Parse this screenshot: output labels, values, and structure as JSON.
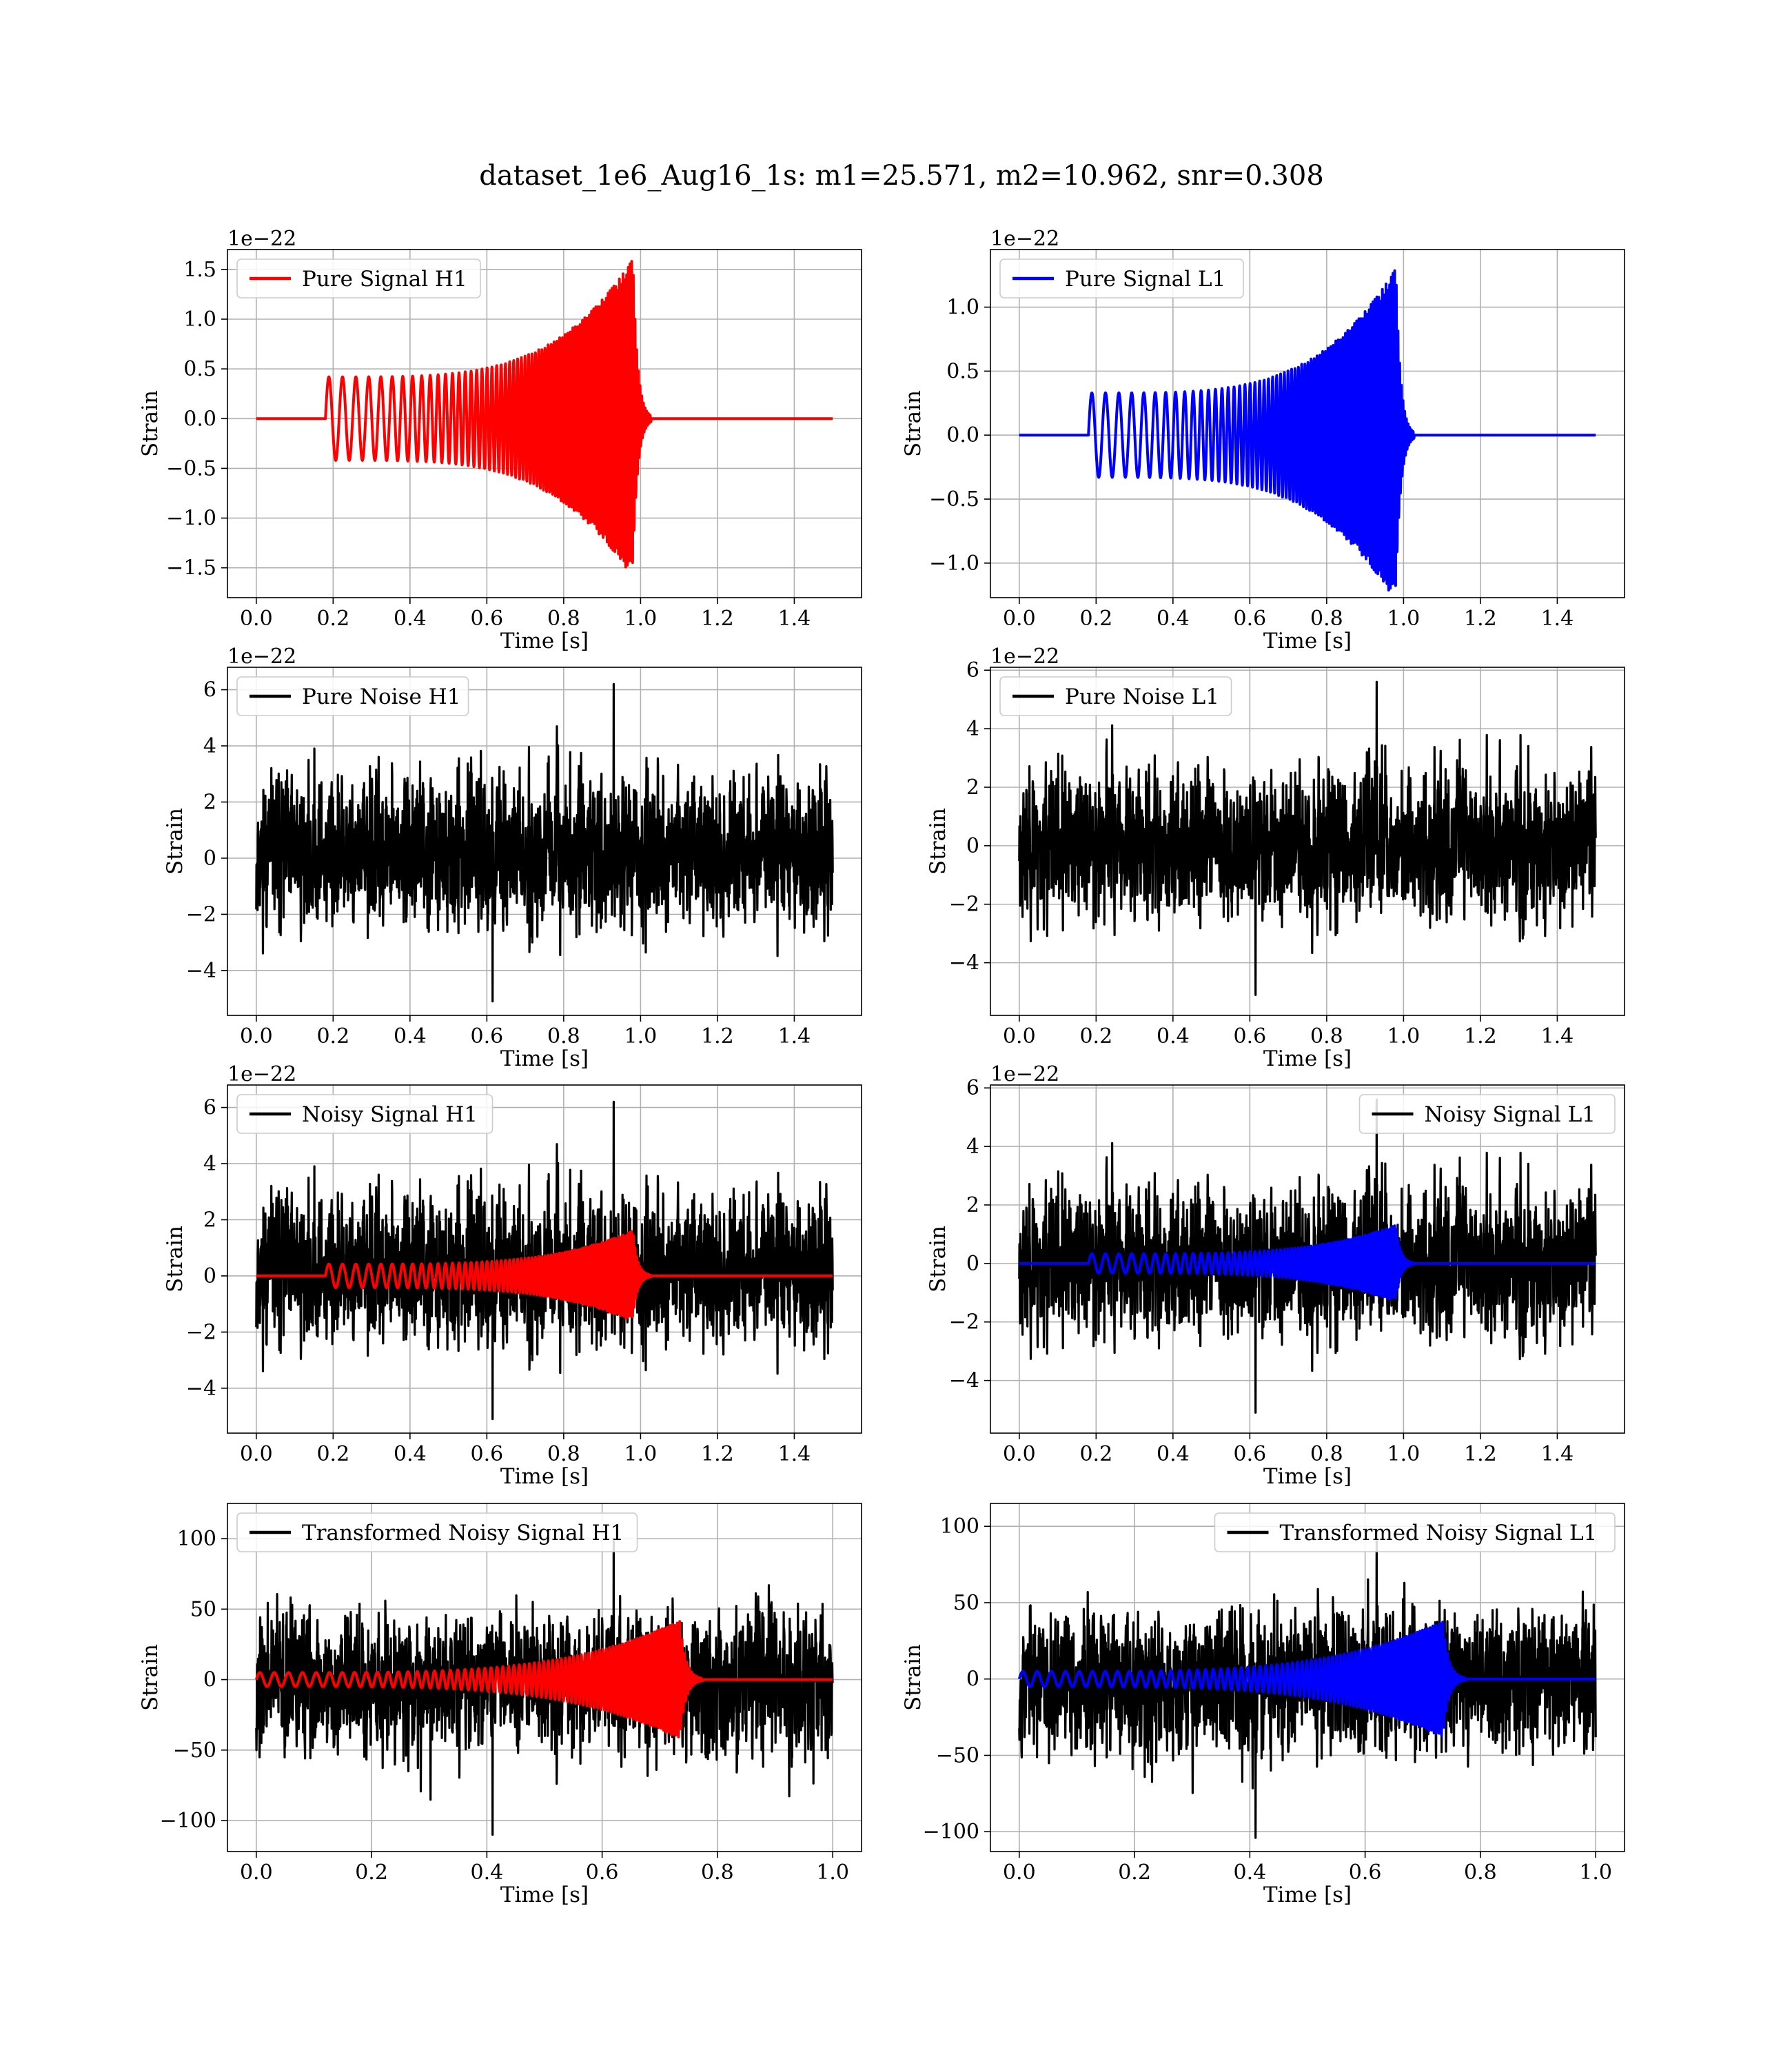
{
  "suptitle": "dataset_1e6_Aug16_1s: m1=25.571, m2=10.962, snr=0.308",
  "colors": {
    "h1_signal": "#ff0000",
    "l1_signal": "#0000ff",
    "noise": "#000000",
    "grid": "#b0b0b0"
  },
  "chart_data": [
    {
      "id": "pure-signal-h1",
      "type": "line",
      "title": "",
      "xlabel": "Time [s]",
      "ylabel": "Strain",
      "offset_text": "1e−22",
      "xlim": [
        -0.075,
        1.575
      ],
      "ylim": [
        -1.8,
        1.7
      ],
      "xticks": [
        0.0,
        0.2,
        0.4,
        0.6,
        0.8,
        1.0,
        1.2,
        1.4
      ],
      "xtick_labels": [
        "0.0",
        "0.2",
        "0.4",
        "0.6",
        "0.8",
        "1.0",
        "1.2",
        "1.4"
      ],
      "yticks": [
        -1.5,
        -1.0,
        -0.5,
        0.0,
        0.5,
        1.0,
        1.5
      ],
      "ytick_labels": [
        "−1.5",
        "−1.0",
        "−0.5",
        "0.0",
        "0.5",
        "1.0",
        "1.5"
      ],
      "grid": true,
      "legend_position": "upper-left",
      "series": [
        {
          "name": "Pure Signal H1",
          "color": "#ff0000",
          "kind": "chirp",
          "x_range": [
            0.0,
            1.5
          ],
          "chirp_start": 0.18,
          "merger": 0.98,
          "amp_start": 0.42,
          "amp_peak": 1.6,
          "freq_start": 28,
          "freq_end": 230,
          "ringdown": 0.012
        }
      ]
    },
    {
      "id": "pure-signal-l1",
      "type": "line",
      "title": "",
      "xlabel": "Time [s]",
      "ylabel": "Strain",
      "offset_text": "1e−22",
      "xlim": [
        -0.075,
        1.575
      ],
      "ylim": [
        -1.27,
        1.45
      ],
      "xticks": [
        0.0,
        0.2,
        0.4,
        0.6,
        0.8,
        1.0,
        1.2,
        1.4
      ],
      "xtick_labels": [
        "0.0",
        "0.2",
        "0.4",
        "0.6",
        "0.8",
        "1.0",
        "1.2",
        "1.4"
      ],
      "yticks": [
        -1.0,
        -0.5,
        0.0,
        0.5,
        1.0
      ],
      "ytick_labels": [
        "−1.0",
        "−0.5",
        "0.0",
        "0.5",
        "1.0"
      ],
      "grid": true,
      "legend_position": "upper-left",
      "series": [
        {
          "name": "Pure Signal L1",
          "color": "#0000ff",
          "kind": "chirp",
          "x_range": [
            0.0,
            1.5
          ],
          "chirp_start": 0.18,
          "merger": 0.98,
          "amp_start": 0.33,
          "amp_peak": 1.3,
          "freq_start": 28,
          "freq_end": 230,
          "ringdown": 0.012
        }
      ]
    },
    {
      "id": "pure-noise-h1",
      "type": "line",
      "title": "",
      "xlabel": "Time [s]",
      "ylabel": "Strain",
      "offset_text": "1e−22",
      "xlim": [
        -0.075,
        1.575
      ],
      "ylim": [
        -5.6,
        6.8
      ],
      "xticks": [
        0.0,
        0.2,
        0.4,
        0.6,
        0.8,
        1.0,
        1.2,
        1.4
      ],
      "xtick_labels": [
        "0.0",
        "0.2",
        "0.4",
        "0.6",
        "0.8",
        "1.0",
        "1.2",
        "1.4"
      ],
      "yticks": [
        -4,
        -2,
        0,
        2,
        4,
        6
      ],
      "ytick_labels": [
        "−4",
        "−2",
        "0",
        "2",
        "4",
        "6"
      ],
      "grid": true,
      "legend_position": "upper-left",
      "series": [
        {
          "name": "Pure Noise H1",
          "color": "#000000",
          "kind": "noise",
          "x_range": [
            0.0,
            1.5
          ],
          "noise_amp": 1.6,
          "peak_max": 6.2,
          "peak_min": -5.1,
          "seed": 11
        }
      ]
    },
    {
      "id": "pure-noise-l1",
      "type": "line",
      "title": "",
      "xlabel": "Time [s]",
      "ylabel": "Strain",
      "offset_text": "1e−22",
      "xlim": [
        -0.075,
        1.575
      ],
      "ylim": [
        -5.8,
        6.1
      ],
      "xticks": [
        0.0,
        0.2,
        0.4,
        0.6,
        0.8,
        1.0,
        1.2,
        1.4
      ],
      "xtick_labels": [
        "0.0",
        "0.2",
        "0.4",
        "0.6",
        "0.8",
        "1.0",
        "1.2",
        "1.4"
      ],
      "yticks": [
        -4,
        -2,
        0,
        2,
        4,
        6
      ],
      "ytick_labels": [
        "−4",
        "−2",
        "0",
        "2",
        "4",
        "6"
      ],
      "grid": true,
      "legend_position": "upper-left",
      "series": [
        {
          "name": "Pure Noise L1",
          "color": "#000000",
          "kind": "noise",
          "x_range": [
            0.0,
            1.5
          ],
          "noise_amp": 1.5,
          "peak_max": 5.6,
          "peak_min": -5.1,
          "seed": 23
        }
      ]
    },
    {
      "id": "noisy-signal-h1",
      "type": "line",
      "title": "",
      "xlabel": "Time [s]",
      "ylabel": "Strain",
      "offset_text": "1e−22",
      "xlim": [
        -0.075,
        1.575
      ],
      "ylim": [
        -5.6,
        6.8
      ],
      "xticks": [
        0.0,
        0.2,
        0.4,
        0.6,
        0.8,
        1.0,
        1.2,
        1.4
      ],
      "xtick_labels": [
        "0.0",
        "0.2",
        "0.4",
        "0.6",
        "0.8",
        "1.0",
        "1.2",
        "1.4"
      ],
      "yticks": [
        -4,
        -2,
        0,
        2,
        4,
        6
      ],
      "ytick_labels": [
        "−4",
        "−2",
        "0",
        "2",
        "4",
        "6"
      ],
      "grid": true,
      "legend_position": "upper-left",
      "series": [
        {
          "name": "Noisy Signal H1",
          "color": "#000000",
          "kind": "noise",
          "x_range": [
            0.0,
            1.5
          ],
          "noise_amp": 1.6,
          "peak_max": 6.2,
          "peak_min": -5.1,
          "seed": 11
        },
        {
          "name": "",
          "color": "#ff0000",
          "kind": "chirp",
          "x_range": [
            0.0,
            1.5
          ],
          "chirp_start": 0.18,
          "merger": 0.98,
          "amp_start": 0.42,
          "amp_peak": 1.6,
          "freq_start": 28,
          "freq_end": 230,
          "ringdown": 0.012
        }
      ]
    },
    {
      "id": "noisy-signal-l1",
      "type": "line",
      "title": "",
      "xlabel": "Time [s]",
      "ylabel": "Strain",
      "offset_text": "1e−22",
      "xlim": [
        -0.075,
        1.575
      ],
      "ylim": [
        -5.8,
        6.1
      ],
      "xticks": [
        0.0,
        0.2,
        0.4,
        0.6,
        0.8,
        1.0,
        1.2,
        1.4
      ],
      "xtick_labels": [
        "0.0",
        "0.2",
        "0.4",
        "0.6",
        "0.8",
        "1.0",
        "1.2",
        "1.4"
      ],
      "yticks": [
        -4,
        -2,
        0,
        2,
        4,
        6
      ],
      "ytick_labels": [
        "−4",
        "−2",
        "0",
        "2",
        "4",
        "6"
      ],
      "grid": true,
      "legend_position": "upper-right",
      "series": [
        {
          "name": "Noisy Signal L1",
          "color": "#000000",
          "kind": "noise",
          "x_range": [
            0.0,
            1.5
          ],
          "noise_amp": 1.5,
          "peak_max": 5.6,
          "peak_min": -5.1,
          "seed": 23
        },
        {
          "name": "",
          "color": "#0000ff",
          "kind": "chirp",
          "x_range": [
            0.0,
            1.5
          ],
          "chirp_start": 0.18,
          "merger": 0.98,
          "amp_start": 0.33,
          "amp_peak": 1.3,
          "freq_start": 28,
          "freq_end": 230,
          "ringdown": 0.012
        }
      ]
    },
    {
      "id": "transformed-noisy-signal-h1",
      "type": "line",
      "title": "",
      "xlabel": "Time [s]",
      "ylabel": "Strain",
      "offset_text": "",
      "xlim": [
        -0.05,
        1.05
      ],
      "ylim": [
        -122,
        125
      ],
      "xticks": [
        0.0,
        0.2,
        0.4,
        0.6,
        0.8,
        1.0
      ],
      "xtick_labels": [
        "0.0",
        "0.2",
        "0.4",
        "0.6",
        "0.8",
        "1.0"
      ],
      "yticks": [
        -100,
        -50,
        0,
        50,
        100
      ],
      "ytick_labels": [
        "−100",
        "−50",
        "0",
        "50",
        "100"
      ],
      "grid": true,
      "legend_position": "upper-left",
      "series": [
        {
          "name": "Transformed Noisy Signal H1",
          "color": "#000000",
          "kind": "noise",
          "x_range": [
            0.0,
            1.0
          ],
          "noise_amp": 30,
          "peak_max": 100,
          "peak_min": -110,
          "seed": 37
        },
        {
          "name": "",
          "color": "#ff0000",
          "kind": "chirp",
          "x_range": [
            0.0,
            1.0
          ],
          "chirp_start": 0.0,
          "merger": 0.735,
          "amp_start": 5,
          "amp_peak": 42,
          "freq_start": 40,
          "freq_end": 240,
          "ringdown": 0.01
        }
      ]
    },
    {
      "id": "transformed-noisy-signal-l1",
      "type": "line",
      "title": "",
      "xlabel": "Time [s]",
      "ylabel": "Strain",
      "offset_text": "",
      "xlim": [
        -0.05,
        1.05
      ],
      "ylim": [
        -113,
        115
      ],
      "xticks": [
        0.0,
        0.2,
        0.4,
        0.6,
        0.8,
        1.0
      ],
      "xtick_labels": [
        "0.0",
        "0.2",
        "0.4",
        "0.6",
        "0.8",
        "1.0"
      ],
      "yticks": [
        -100,
        -50,
        0,
        50,
        100
      ],
      "ytick_labels": [
        "−100",
        "−50",
        "0",
        "50",
        "100"
      ],
      "grid": true,
      "legend_position": "upper-right",
      "series": [
        {
          "name": "Transformed Noisy Signal L1",
          "color": "#000000",
          "kind": "noise",
          "x_range": [
            0.0,
            1.0
          ],
          "noise_amp": 30,
          "peak_max": 96,
          "peak_min": -104,
          "seed": 53
        },
        {
          "name": "",
          "color": "#0000ff",
          "kind": "chirp",
          "x_range": [
            0.0,
            1.0
          ],
          "chirp_start": 0.0,
          "merger": 0.735,
          "amp_start": 5,
          "amp_peak": 38,
          "freq_start": 40,
          "freq_end": 240,
          "ringdown": 0.01
        }
      ]
    }
  ]
}
